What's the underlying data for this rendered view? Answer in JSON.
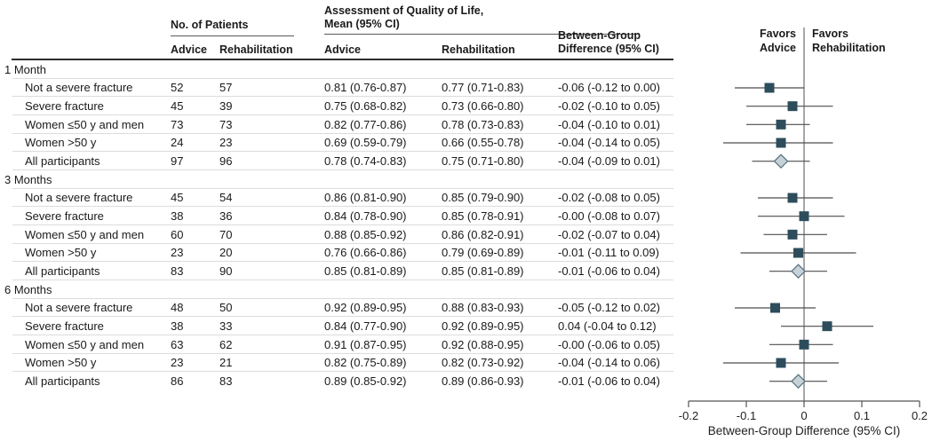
{
  "table": {
    "header": {
      "patients": "No. of Patients",
      "qol1": "Assessment of Quality of Life,",
      "qol2": "Mean (95% CI)",
      "diff1": "Between-Group",
      "diff2": "Difference (95% CI)",
      "advice": "Advice",
      "rehab": "Rehabilitation"
    },
    "sections": [
      {
        "label": "1 Month",
        "rows": [
          {
            "label": "Not a severe fracture",
            "n_advice": "52",
            "n_rehab": "57",
            "ci_advice": "0.81 (0.76-0.87)",
            "ci_rehab": "0.77 (0.71-0.83)",
            "diff": "-0.06 (-0.12 to 0.00)"
          },
          {
            "label": "Severe fracture",
            "n_advice": "45",
            "n_rehab": "39",
            "ci_advice": "0.75 (0.68-0.82)",
            "ci_rehab": "0.73 (0.66-0.80)",
            "diff": "-0.02 (-0.10 to 0.05)"
          },
          {
            "label": "Women ≤50 y and men",
            "n_advice": "73",
            "n_rehab": "73",
            "ci_advice": "0.82 (0.77-0.86)",
            "ci_rehab": "0.78 (0.73-0.83)",
            "diff": "-0.04 (-0.10 to 0.01)"
          },
          {
            "label": "Women >50 y",
            "n_advice": "24",
            "n_rehab": "23",
            "ci_advice": "0.69 (0.59-0.79)",
            "ci_rehab": "0.66 (0.55-0.78)",
            "diff": "-0.04 (-0.14 to 0.05)"
          },
          {
            "label": "All participants",
            "n_advice": "97",
            "n_rehab": "96",
            "ci_advice": "0.78 (0.74-0.83)",
            "ci_rehab": "0.75 (0.71-0.80)",
            "diff": "-0.04 (-0.09 to 0.01)"
          }
        ]
      },
      {
        "label": "3 Months",
        "rows": [
          {
            "label": "Not a severe fracture",
            "n_advice": "45",
            "n_rehab": "54",
            "ci_advice": "0.86 (0.81-0.90)",
            "ci_rehab": "0.85 (0.79-0.90)",
            "diff": "-0.02 (-0.08 to 0.05)"
          },
          {
            "label": "Severe fracture",
            "n_advice": "38",
            "n_rehab": "36",
            "ci_advice": "0.84 (0.78-0.90)",
            "ci_rehab": "0.85 (0.78-0.91)",
            "diff": "-0.00 (-0.08 to 0.07)"
          },
          {
            "label": "Women ≤50 y and men",
            "n_advice": "60",
            "n_rehab": "70",
            "ci_advice": "0.88 (0.85-0.92)",
            "ci_rehab": "0.86 (0.82-0.91)",
            "diff": "-0.02 (-0.07 to 0.04)"
          },
          {
            "label": "Women >50 y",
            "n_advice": "23",
            "n_rehab": "20",
            "ci_advice": "0.76 (0.66-0.86)",
            "ci_rehab": "0.79 (0.69-0.89)",
            "diff": "-0.01 (-0.11 to 0.09)"
          },
          {
            "label": "All participants",
            "n_advice": "83",
            "n_rehab": "90",
            "ci_advice": "0.85 (0.81-0.89)",
            "ci_rehab": "0.85 (0.81-0.89)",
            "diff": "-0.01 (-0.06 to 0.04)"
          }
        ]
      },
      {
        "label": "6 Months",
        "rows": [
          {
            "label": "Not a severe fracture",
            "n_advice": "48",
            "n_rehab": "50",
            "ci_advice": "0.92 (0.89-0.95)",
            "ci_rehab": "0.88 (0.83-0.93)",
            "diff": "-0.05 (-0.12 to 0.02)"
          },
          {
            "label": "Severe fracture",
            "n_advice": "38",
            "n_rehab": "33",
            "ci_advice": "0.84 (0.77-0.90)",
            "ci_rehab": "0.92 (0.89-0.95)",
            "diff": "0.04 (-0.04 to 0.12)"
          },
          {
            "label": "Women ≤50 y and men",
            "n_advice": "63",
            "n_rehab": "62",
            "ci_advice": "0.91 (0.87-0.95)",
            "ci_rehab": "0.92 (0.88-0.95)",
            "diff": "-0.00 (-0.06 to 0.05)"
          },
          {
            "label": "Women >50 y",
            "n_advice": "23",
            "n_rehab": "21",
            "ci_advice": "0.82 (0.75-0.89)",
            "ci_rehab": "0.82 (0.73-0.92)",
            "diff": "-0.04 (-0.14 to 0.06)"
          },
          {
            "label": "All participants",
            "n_advice": "86",
            "n_rehab": "83",
            "ci_advice": "0.89 (0.85-0.92)",
            "ci_rehab": "0.89 (0.86-0.93)",
            "diff": "-0.01 (-0.06 to 0.04)"
          }
        ]
      }
    ]
  },
  "plot": {
    "favors_left": [
      "Favors",
      "Advice"
    ],
    "favors_right": [
      "Favors",
      "Rehabilitation"
    ],
    "axis_title": "Between-Group Difference (95% CI)",
    "tick_labels": [
      "-0.2",
      "-0.1",
      "0",
      "0.1",
      "0.2"
    ],
    "colors": {
      "square": "#2d4d5c",
      "diamond_fill": "#c6d2d8",
      "diamond_stroke": "#54707c",
      "ci_line": "#4d4d4d",
      "zero_line": "#8a8a8a",
      "axis": "#555555",
      "text": "#222222"
    }
  },
  "chart_data": {
    "type": "scatter",
    "subtype": "forest-plot",
    "xlabel": "Between-Group Difference (95% CI)",
    "xlim": [
      -0.2,
      0.2
    ],
    "xticks": [
      -0.2,
      -0.1,
      0,
      0.1,
      0.2
    ],
    "zero_line": 0,
    "left_region_label": "Favors Advice",
    "right_region_label": "Favors Rehabilitation",
    "groups": [
      {
        "group": "1 Month",
        "points": [
          {
            "label": "Not a severe fracture",
            "est": -0.06,
            "lo": -0.12,
            "hi": 0.0,
            "marker": "square"
          },
          {
            "label": "Severe fracture",
            "est": -0.02,
            "lo": -0.1,
            "hi": 0.05,
            "marker": "square"
          },
          {
            "label": "Women ≤50 y and men",
            "est": -0.04,
            "lo": -0.1,
            "hi": 0.01,
            "marker": "square"
          },
          {
            "label": "Women >50 y",
            "est": -0.04,
            "lo": -0.14,
            "hi": 0.05,
            "marker": "square"
          },
          {
            "label": "All participants",
            "est": -0.04,
            "lo": -0.09,
            "hi": 0.01,
            "marker": "diamond"
          }
        ]
      },
      {
        "group": "3 Months",
        "points": [
          {
            "label": "Not a severe fracture",
            "est": -0.02,
            "lo": -0.08,
            "hi": 0.05,
            "marker": "square"
          },
          {
            "label": "Severe fracture",
            "est": 0.0,
            "lo": -0.08,
            "hi": 0.07,
            "marker": "square"
          },
          {
            "label": "Women ≤50 y and men",
            "est": -0.02,
            "lo": -0.07,
            "hi": 0.04,
            "marker": "square"
          },
          {
            "label": "Women >50 y",
            "est": -0.01,
            "lo": -0.11,
            "hi": 0.09,
            "marker": "square"
          },
          {
            "label": "All participants",
            "est": -0.01,
            "lo": -0.06,
            "hi": 0.04,
            "marker": "diamond"
          }
        ]
      },
      {
        "group": "6 Months",
        "points": [
          {
            "label": "Not a severe fracture",
            "est": -0.05,
            "lo": -0.12,
            "hi": 0.02,
            "marker": "square"
          },
          {
            "label": "Severe fracture",
            "est": 0.04,
            "lo": -0.04,
            "hi": 0.12,
            "marker": "square"
          },
          {
            "label": "Women ≤50 y and men",
            "est": 0.0,
            "lo": -0.06,
            "hi": 0.05,
            "marker": "square"
          },
          {
            "label": "Women >50 y",
            "est": -0.04,
            "lo": -0.14,
            "hi": 0.06,
            "marker": "square"
          },
          {
            "label": "All participants",
            "est": -0.01,
            "lo": -0.06,
            "hi": 0.04,
            "marker": "diamond"
          }
        ]
      }
    ]
  }
}
